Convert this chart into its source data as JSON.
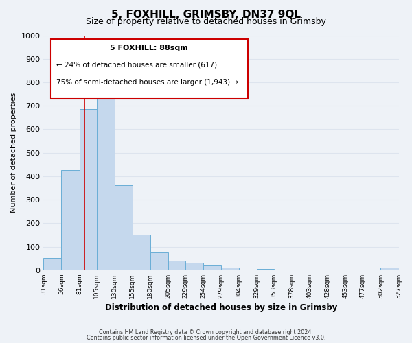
{
  "title": "5, FOXHILL, GRIMSBY, DN37 9QL",
  "subtitle": "Size of property relative to detached houses in Grimsby",
  "xlabel": "Distribution of detached houses by size in Grimsby",
  "ylabel": "Number of detached properties",
  "bar_left_edges": [
    31,
    56,
    81,
    105,
    130,
    155,
    180,
    205,
    229,
    254,
    279,
    304,
    329,
    353,
    378,
    403,
    428,
    453,
    477,
    502
  ],
  "bar_widths": [
    25,
    25,
    24,
    25,
    25,
    25,
    25,
    24,
    25,
    25,
    25,
    25,
    24,
    25,
    25,
    25,
    25,
    24,
    25,
    25
  ],
  "bar_heights": [
    52,
    425,
    685,
    758,
    362,
    152,
    75,
    40,
    32,
    20,
    12,
    0,
    5,
    0,
    0,
    0,
    0,
    0,
    0,
    10
  ],
  "bar_color": "#c5d8ed",
  "bar_edge_color": "#6aaed6",
  "ylim": [
    0,
    1000
  ],
  "yticks": [
    0,
    100,
    200,
    300,
    400,
    500,
    600,
    700,
    800,
    900,
    1000
  ],
  "xtick_labels": [
    "31sqm",
    "56sqm",
    "81sqm",
    "105sqm",
    "130sqm",
    "155sqm",
    "180sqm",
    "205sqm",
    "229sqm",
    "254sqm",
    "279sqm",
    "304sqm",
    "329sqm",
    "353sqm",
    "378sqm",
    "403sqm",
    "428sqm",
    "453sqm",
    "477sqm",
    "502sqm",
    "527sqm"
  ],
  "xlim_left": 31,
  "xlim_right": 527,
  "vline_x": 88,
  "vline_color": "#cc0000",
  "annotation_line1": "5 FOXHILL: 88sqm",
  "annotation_line2": "← 24% of detached houses are smaller (617)",
  "annotation_line3": "75% of semi-detached houses are larger (1,943) →",
  "footer_line1": "Contains HM Land Registry data © Crown copyright and database right 2024.",
  "footer_line2": "Contains public sector information licensed under the Open Government Licence v3.0.",
  "bg_color": "#eef2f7",
  "grid_color": "#dde4ee",
  "title_fontsize": 11,
  "subtitle_fontsize": 9
}
